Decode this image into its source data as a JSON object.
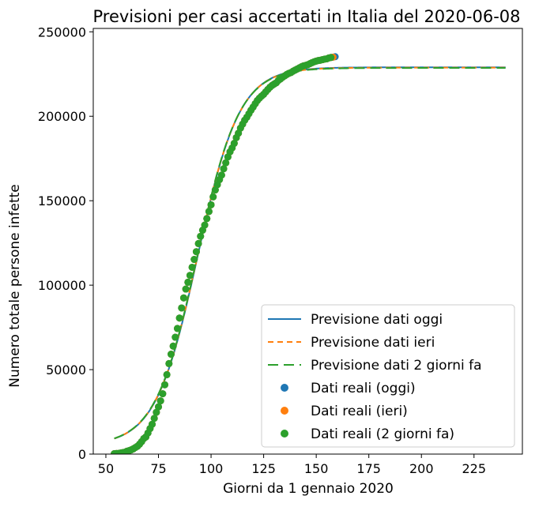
{
  "chart_data": {
    "type": "scatter",
    "title": "Previsioni per casi accertati in Italia del 2020-06-08",
    "xlabel": "Giorni da 1 gennaio 2020",
    "ylabel": "Numero totale persone infette",
    "xlim": [
      44,
      248
    ],
    "ylim": [
      0,
      252000
    ],
    "xticks": [
      50,
      75,
      100,
      125,
      150,
      175,
      200,
      225
    ],
    "yticks": [
      0,
      50000,
      100000,
      150000,
      200000,
      250000
    ],
    "legend_position": "bottom-right",
    "colors": {
      "blue": "#1f77b4",
      "orange": "#ff7f0e",
      "green": "#2ca02c"
    },
    "curve_x_range": [
      54,
      240
    ],
    "curves": [
      {
        "name": "Previsione dati oggi",
        "style": "solid",
        "color": "#1f77b4",
        "L": 229000,
        "k": 0.1,
        "x0": 93.6,
        "base": 5000
      },
      {
        "name": "Previsione dati ieri",
        "style": "dashed",
        "color": "#ff7f0e",
        "L": 228800,
        "k": 0.1,
        "x0": 93.5,
        "base": 5000
      },
      {
        "name": "Previsione dati 2 giorni fa",
        "style": "longdash",
        "color": "#2ca02c",
        "L": 228600,
        "k": 0.1,
        "x0": 93.4,
        "base": 5000
      }
    ],
    "scatter_series": [
      {
        "name": "Dati reali (oggi)",
        "color": "#1f77b4",
        "x": [
          54,
          55,
          56,
          57,
          58,
          59,
          60,
          61,
          62,
          63,
          64,
          65,
          66,
          67,
          68,
          69,
          70,
          71,
          72,
          73,
          74,
          75,
          76,
          77,
          78,
          79,
          80,
          81,
          82,
          83,
          84,
          85,
          86,
          87,
          88,
          89,
          90,
          91,
          92,
          93,
          94,
          95,
          96,
          97,
          98,
          99,
          100,
          101,
          102,
          103,
          104,
          105,
          106,
          107,
          108,
          109,
          110,
          111,
          112,
          113,
          114,
          115,
          116,
          117,
          118,
          119,
          120,
          121,
          122,
          123,
          124,
          125,
          126,
          127,
          128,
          129,
          130,
          131,
          132,
          133,
          134,
          135,
          136,
          137,
          138,
          139,
          140,
          141,
          142,
          143,
          144,
          145,
          146,
          147,
          148,
          149,
          150,
          151,
          152,
          153,
          154,
          155,
          156,
          157,
          158,
          159
        ],
        "y": [
          229,
          322,
          400,
          650,
          888,
          1128,
          1694,
          2036,
          2502,
          3089,
          3858,
          4636,
          5883,
          7375,
          9172,
          10149,
          12462,
          15113,
          17660,
          21157,
          24747,
          27980,
          31506,
          35713,
          41035,
          47021,
          53578,
          59138,
          63927,
          69176,
          74386,
          80539,
          86498,
          92472,
          97689,
          101739,
          105792,
          110574,
          115242,
          119827,
          124632,
          128948,
          132547,
          135586,
          139422,
          143626,
          147577,
          152271,
          156363,
          159516,
          162488,
          165155,
          168941,
          172434,
          175925,
          178972,
          181228,
          183957,
          187327,
          189973,
          192994,
          195351,
          197675,
          199414,
          201505,
          203591,
          205463,
          207428,
          209328,
          210717,
          211938,
          213013,
          214457,
          215858,
          217185,
          218268,
          219070,
          219814,
          221216,
          222104,
          223096,
          223885,
          224760,
          225435,
          225886,
          226699,
          227364,
          228006,
          228658,
          229327,
          229858,
          230158,
          230555,
          231139,
          231732,
          232248,
          232664,
          232997,
          233197,
          233515,
          233836,
          234013,
          234531,
          234801,
          234998,
          235278
        ]
      },
      {
        "name": "Dati reali (ieri)",
        "color": "#ff7f0e",
        "x": [
          54,
          55,
          56,
          57,
          58,
          59,
          60,
          61,
          62,
          63,
          64,
          65,
          66,
          67,
          68,
          69,
          70,
          71,
          72,
          73,
          74,
          75,
          76,
          77,
          78,
          79,
          80,
          81,
          82,
          83,
          84,
          85,
          86,
          87,
          88,
          89,
          90,
          91,
          92,
          93,
          94,
          95,
          96,
          97,
          98,
          99,
          100,
          101,
          102,
          103,
          104,
          105,
          106,
          107,
          108,
          109,
          110,
          111,
          112,
          113,
          114,
          115,
          116,
          117,
          118,
          119,
          120,
          121,
          122,
          123,
          124,
          125,
          126,
          127,
          128,
          129,
          130,
          131,
          132,
          133,
          134,
          135,
          136,
          137,
          138,
          139,
          140,
          141,
          142,
          143,
          144,
          145,
          146,
          147,
          148,
          149,
          150,
          151,
          152,
          153,
          154,
          155,
          156,
          157,
          158
        ],
        "y": [
          229,
          322,
          400,
          650,
          888,
          1128,
          1694,
          2036,
          2502,
          3089,
          3858,
          4636,
          5883,
          7375,
          9172,
          10149,
          12462,
          15113,
          17660,
          21157,
          24747,
          27980,
          31506,
          35713,
          41035,
          47021,
          53578,
          59138,
          63927,
          69176,
          74386,
          80539,
          86498,
          92472,
          97689,
          101739,
          105792,
          110574,
          115242,
          119827,
          124632,
          128948,
          132547,
          135586,
          139422,
          143626,
          147577,
          152271,
          156363,
          159516,
          162488,
          165155,
          168941,
          172434,
          175925,
          178972,
          181228,
          183957,
          187327,
          189973,
          192994,
          195351,
          197675,
          199414,
          201505,
          203591,
          205463,
          207428,
          209328,
          210717,
          211938,
          213013,
          214457,
          215858,
          217185,
          218268,
          219070,
          219814,
          221216,
          222104,
          223096,
          223885,
          224760,
          225435,
          225886,
          226699,
          227364,
          228006,
          228658,
          229327,
          229858,
          230158,
          230555,
          231139,
          231732,
          232248,
          232664,
          232997,
          233197,
          233515,
          233836,
          234013,
          234531,
          234801,
          234998
        ]
      },
      {
        "name": "Dati reali (2 giorni fa)",
        "color": "#2ca02c",
        "x": [
          54,
          55,
          56,
          57,
          58,
          59,
          60,
          61,
          62,
          63,
          64,
          65,
          66,
          67,
          68,
          69,
          70,
          71,
          72,
          73,
          74,
          75,
          76,
          77,
          78,
          79,
          80,
          81,
          82,
          83,
          84,
          85,
          86,
          87,
          88,
          89,
          90,
          91,
          92,
          93,
          94,
          95,
          96,
          97,
          98,
          99,
          100,
          101,
          102,
          103,
          104,
          105,
          106,
          107,
          108,
          109,
          110,
          111,
          112,
          113,
          114,
          115,
          116,
          117,
          118,
          119,
          120,
          121,
          122,
          123,
          124,
          125,
          126,
          127,
          128,
          129,
          130,
          131,
          132,
          133,
          134,
          135,
          136,
          137,
          138,
          139,
          140,
          141,
          142,
          143,
          144,
          145,
          146,
          147,
          148,
          149,
          150,
          151,
          152,
          153,
          154,
          155,
          156,
          157
        ],
        "y": [
          229,
          322,
          400,
          650,
          888,
          1128,
          1694,
          2036,
          2502,
          3089,
          3858,
          4636,
          5883,
          7375,
          9172,
          10149,
          12462,
          15113,
          17660,
          21157,
          24747,
          27980,
          31506,
          35713,
          41035,
          47021,
          53578,
          59138,
          63927,
          69176,
          74386,
          80539,
          86498,
          92472,
          97689,
          101739,
          105792,
          110574,
          115242,
          119827,
          124632,
          128948,
          132547,
          135586,
          139422,
          143626,
          147577,
          152271,
          156363,
          159516,
          162488,
          165155,
          168941,
          172434,
          175925,
          178972,
          181228,
          183957,
          187327,
          189973,
          192994,
          195351,
          197675,
          199414,
          201505,
          203591,
          205463,
          207428,
          209328,
          210717,
          211938,
          213013,
          214457,
          215858,
          217185,
          218268,
          219070,
          219814,
          221216,
          222104,
          223096,
          223885,
          224760,
          225435,
          225886,
          226699,
          227364,
          228006,
          228658,
          229327,
          229858,
          230158,
          230555,
          231139,
          231732,
          232248,
          232664,
          232997,
          233197,
          233515,
          233836,
          234013,
          234531,
          234801
        ]
      }
    ]
  }
}
